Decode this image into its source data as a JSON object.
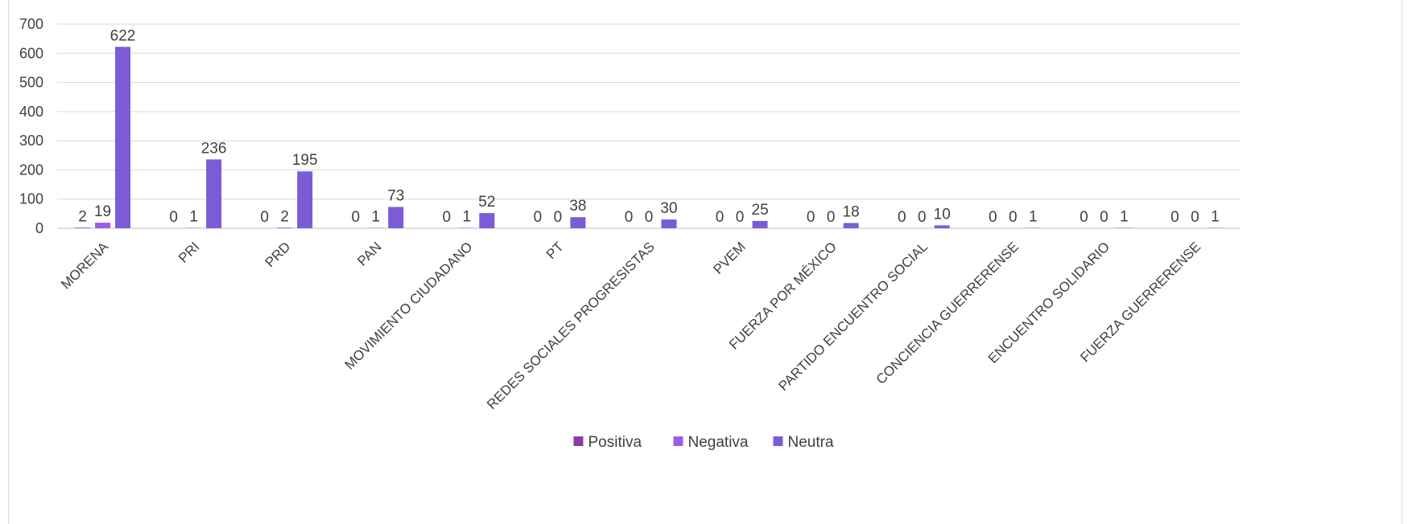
{
  "chart_data": {
    "type": "bar",
    "title": "",
    "xlabel": "",
    "ylabel": "",
    "ylim": [
      0,
      700
    ],
    "yticks": [
      0,
      100,
      200,
      300,
      400,
      500,
      600,
      700
    ],
    "grid": true,
    "legend_position": "bottom",
    "categories": [
      "MORENA",
      "PRI",
      "PRD",
      "PAN",
      "MOVIMIENTO CIUDADANO",
      "PT",
      "REDES SOCIALES PROGRESISTAS",
      "PVEM",
      "FUERZA POR MÉXICO",
      "PARTIDO ENCUENTRO SOCIAL",
      "CONCIENCIA GUERRERENSE",
      "ENCUENTRO SOLIDARIO",
      "FUERZA GUERRERENSE"
    ],
    "series": [
      {
        "name": "Positiva",
        "color": "#8e3aa6",
        "values": [
          2,
          0,
          0,
          0,
          0,
          0,
          0,
          0,
          0,
          0,
          0,
          0,
          0
        ]
      },
      {
        "name": "Negativa",
        "color": "#9b5de5",
        "values": [
          19,
          1,
          2,
          1,
          1,
          0,
          0,
          0,
          0,
          0,
          0,
          0,
          0
        ]
      },
      {
        "name": "Neutra",
        "color": "#7b5cd6",
        "values": [
          622,
          236,
          195,
          73,
          52,
          38,
          30,
          25,
          18,
          10,
          1,
          1,
          1
        ]
      }
    ]
  }
}
